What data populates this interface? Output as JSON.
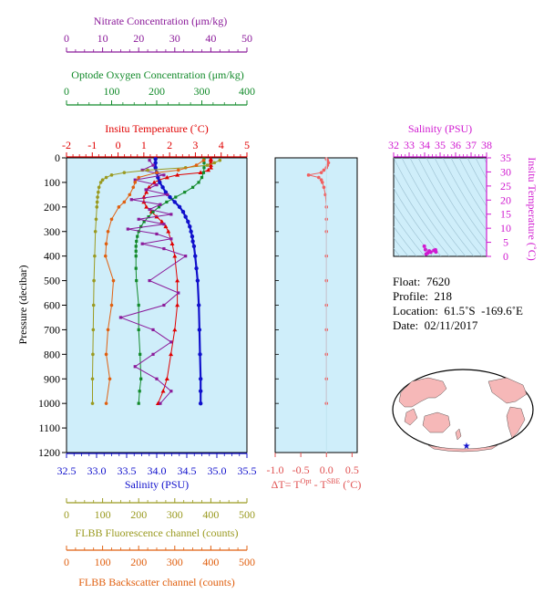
{
  "colors": {
    "nitrate": "#8b1a9a",
    "oxygen": "#128a2a",
    "temperature": "#e00000",
    "salinity": "#1010cc",
    "fluorescence": "#9a9a20",
    "backscatter": "#e06010",
    "deltaT": "#f06060",
    "tsPanel": "#d01ad0",
    "plotBg": "#cfeefa",
    "land": "#f6b8b8"
  },
  "axes": {
    "nitrate": {
      "title": "Nitrate Concentration (μm/kg)",
      "ticks": [
        "0",
        "10",
        "20",
        "30",
        "40",
        "50"
      ],
      "range": [
        0,
        50
      ]
    },
    "oxygen": {
      "title": "Optode Oxygen Concentration (μm/kg)",
      "ticks": [
        "0",
        "100",
        "200",
        "300",
        "400"
      ],
      "range": [
        0,
        400
      ]
    },
    "temperature": {
      "title": "Insitu Temperature (˚C)",
      "ticks": [
        "-2",
        "-1",
        "0",
        "1",
        "2",
        "3",
        "4",
        "5"
      ],
      "range": [
        -2,
        5
      ]
    },
    "salinity": {
      "title": "Salinity (PSU)",
      "ticks": [
        "32.5",
        "33.0",
        "33.5",
        "34.0",
        "34.5",
        "35.0",
        "35.5"
      ],
      "range": [
        32.5,
        35.5
      ]
    },
    "pressure": {
      "title": "Pressure (decibar)",
      "ticks": [
        "0",
        "100",
        "200",
        "300",
        "400",
        "500",
        "600",
        "700",
        "800",
        "900",
        "1000",
        "1100",
        "1200"
      ],
      "range": [
        0,
        1200
      ]
    },
    "deltaT": {
      "title_main": "ΔT= T",
      "sup_opt": "Opt",
      "title_mid": " - T",
      "sup_sbe": "SBE",
      "title_unit": " (˚C)",
      "ticks": [
        "-1.0",
        "-0.5",
        "0.0",
        "0.5"
      ],
      "range": [
        -1.0,
        0.6
      ]
    },
    "fluorescence": {
      "title": "FLBB Fluorescence channel (counts)",
      "ticks": [
        "0",
        "100",
        "200",
        "300",
        "400",
        "500"
      ],
      "range": [
        0,
        500
      ]
    },
    "backscatter": {
      "title": "FLBB Backscatter channel (counts)",
      "ticks": [
        "0",
        "100",
        "200",
        "300",
        "400",
        "500"
      ],
      "range": [
        0,
        500
      ]
    },
    "ts_salinity": {
      "title": "Salinity (PSU)",
      "ticks": [
        "32",
        "33",
        "34",
        "35",
        "36",
        "37",
        "38"
      ],
      "range": [
        32,
        38
      ]
    },
    "ts_temperature": {
      "title": "Insitu Temperature (˚C)",
      "ticks": [
        "0",
        "5",
        "10",
        "15",
        "20",
        "25",
        "30",
        "35"
      ],
      "range": [
        0,
        35
      ]
    }
  },
  "info": {
    "float": "Float:  7620",
    "profile": "Profile:  218",
    "location": "Location:  61.5˚S  -169.6˚E",
    "date": "Date:  02/11/2017"
  },
  "chart_data": {
    "type": "line",
    "y_variable": "pressure",
    "y_reversed": true,
    "series": [
      {
        "axis": "temperature",
        "pressure": [
          5,
          10,
          20,
          30,
          40,
          50,
          60,
          70,
          80,
          90,
          100,
          120,
          140,
          160,
          180,
          200,
          220,
          240,
          260,
          280,
          300,
          350,
          400,
          500,
          600,
          700,
          800,
          900,
          950,
          1000
        ],
        "values": [
          3.6,
          3.6,
          3.6,
          3.6,
          3.6,
          3.5,
          3.2,
          2.3,
          1.9,
          1.6,
          1.4,
          1.2,
          1.1,
          1.0,
          1.0,
          1.1,
          1.3,
          1.5,
          1.7,
          1.85,
          1.95,
          2.1,
          2.2,
          2.3,
          2.3,
          2.2,
          2.05,
          1.9,
          1.75,
          1.55
        ]
      },
      {
        "axis": "salinity",
        "pressure": [
          5,
          20,
          40,
          60,
          80,
          100,
          120,
          140,
          160,
          180,
          200,
          220,
          240,
          260,
          280,
          300,
          320,
          340,
          360,
          400,
          450,
          500,
          600,
          700,
          800,
          900,
          950,
          1000
        ],
        "values": [
          33.98,
          33.98,
          33.98,
          34.0,
          34.02,
          34.05,
          34.1,
          34.15,
          34.22,
          34.3,
          34.38,
          34.44,
          34.48,
          34.52,
          34.55,
          34.57,
          34.59,
          34.6,
          34.62,
          34.64,
          34.66,
          34.68,
          34.7,
          34.71,
          34.72,
          34.73,
          34.73,
          34.73
        ]
      },
      {
        "axis": "oxygen",
        "pressure": [
          5,
          20,
          40,
          60,
          80,
          100,
          120,
          140,
          160,
          180,
          200,
          220,
          240,
          260,
          280,
          300,
          320,
          340,
          360,
          380,
          400,
          450,
          500,
          600,
          700,
          800,
          900,
          950,
          1000
        ],
        "values": [
          305,
          305,
          305,
          304,
          300,
          293,
          280,
          262,
          242,
          222,
          205,
          192,
          182,
          172,
          165,
          160,
          157,
          155,
          154,
          154,
          154,
          154,
          155,
          160,
          160,
          163,
          165,
          162,
          160
        ]
      },
      {
        "axis": "nitrate",
        "pressure": [
          10,
          30,
          50,
          70,
          90,
          110,
          130,
          150,
          170,
          190,
          210,
          230,
          250,
          270,
          290,
          310,
          330,
          350,
          370,
          400,
          500,
          550,
          600,
          650,
          700,
          750,
          800,
          850,
          900,
          950,
          1000
        ],
        "values": [
          23,
          24,
          21,
          27,
          19,
          25,
          22,
          28,
          18,
          26,
          23,
          29,
          20,
          27,
          17,
          25,
          29,
          21,
          27,
          33,
          23,
          31,
          27,
          15,
          24,
          29,
          24,
          19,
          25,
          29,
          26
        ]
      },
      {
        "axis": "fluorescence",
        "pressure": [
          10,
          20,
          30,
          40,
          50,
          60,
          70,
          80,
          90,
          100,
          120,
          140,
          160,
          180,
          200,
          250,
          300,
          400,
          500,
          600,
          700,
          800,
          900,
          1000
        ],
        "values": [
          425,
          410,
          390,
          330,
          225,
          160,
          125,
          110,
          100,
          95,
          90,
          88,
          86,
          85,
          84,
          82,
          80,
          78,
          76,
          75,
          74,
          73,
          72,
          72
        ]
      },
      {
        "axis": "backscatter",
        "pressure": [
          10,
          30,
          50,
          60,
          80,
          100,
          120,
          150,
          180,
          200,
          250,
          300,
          350,
          400,
          500,
          600,
          700,
          800,
          900,
          1000
        ],
        "values": [
          380,
          360,
          310,
          250,
          200,
          190,
          185,
          175,
          160,
          145,
          125,
          115,
          110,
          108,
          130,
          125,
          115,
          110,
          120,
          110
        ]
      },
      {
        "axis": "deltaT",
        "pressure": [
          5,
          10,
          20,
          30,
          40,
          50,
          60,
          70,
          80,
          90,
          100,
          120,
          150,
          200,
          250,
          300,
          400,
          500,
          600,
          700,
          800,
          900,
          1000
        ],
        "values": [
          0.0,
          0.02,
          0.04,
          0.02,
          0.0,
          -0.05,
          -0.1,
          -0.35,
          -0.15,
          -0.1,
          -0.08,
          -0.05,
          -0.02,
          0.0,
          0.0,
          0.0,
          0.0,
          0.0,
          0.0,
          0.0,
          0.0,
          0.0,
          0.0
        ]
      }
    ],
    "ts_diagram": {
      "salinity": [
        33.98,
        34.05,
        34.2,
        34.4,
        34.6,
        34.7,
        34.73,
        34.1,
        34.3
      ],
      "temperature": [
        3.6,
        2.4,
        1.2,
        1.5,
        2.1,
        2.3,
        1.6,
        0.8,
        1.9
      ]
    },
    "float_position": {
      "lat": -61.5,
      "lon": -169.6
    }
  }
}
